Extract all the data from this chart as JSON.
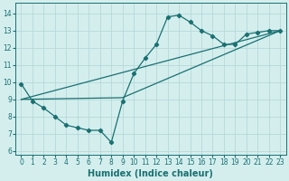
{
  "xlabel": "Humidex (Indice chaleur)",
  "bg_color": "#d4eeee",
  "line_color": "#1a7070",
  "grid_color": "#b8d8d8",
  "xlim": [
    -0.5,
    23.5
  ],
  "ylim": [
    5.8,
    14.6
  ],
  "yticks": [
    6,
    7,
    8,
    9,
    10,
    11,
    12,
    13,
    14
  ],
  "xticks": [
    0,
    1,
    2,
    3,
    4,
    5,
    6,
    7,
    8,
    9,
    10,
    11,
    12,
    13,
    14,
    15,
    16,
    17,
    18,
    19,
    20,
    21,
    22,
    23
  ],
  "curve_x": [
    0,
    1,
    2,
    3,
    4,
    5,
    6,
    7,
    8,
    9,
    10,
    11,
    12,
    13,
    14,
    15,
    16,
    17,
    18,
    19,
    20,
    21,
    22,
    23
  ],
  "curve_y": [
    9.9,
    8.9,
    8.5,
    8.0,
    7.5,
    7.35,
    7.2,
    7.2,
    6.5,
    8.9,
    10.5,
    11.4,
    12.2,
    13.8,
    13.9,
    13.5,
    13.0,
    12.7,
    12.2,
    12.2,
    12.8,
    12.9,
    13.0,
    13.0
  ],
  "trend1_x": [
    0,
    23
  ],
  "trend1_y": [
    9.0,
    13.0
  ],
  "trend2_x": [
    0,
    9,
    23
  ],
  "trend2_y": [
    9.0,
    9.1,
    13.0
  ],
  "tick_fontsize": 5.5,
  "xlabel_fontsize": 7
}
